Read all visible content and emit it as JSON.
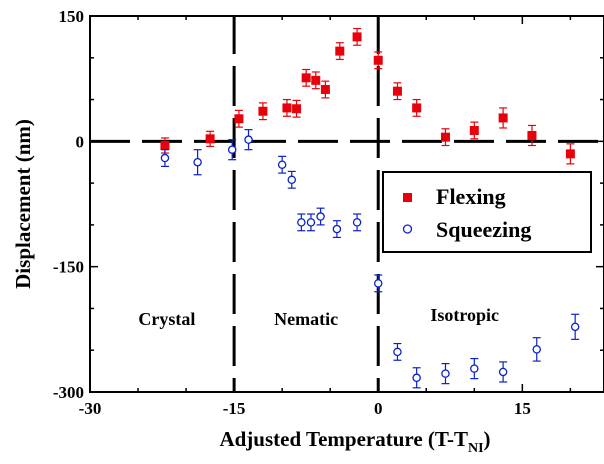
{
  "chart_data": {
    "type": "scatter",
    "xlabel": "Adjusted Temperature (T-T",
    "xlabel_sub": "NI",
    "xlabel_end": ")",
    "ylabel": "Displacement (nm)",
    "xlim": [
      -30,
      23.5
    ],
    "ylim": [
      -300,
      150
    ],
    "x_ticks": [
      -30,
      -15,
      0,
      15
    ],
    "y_ticks": [
      150,
      0,
      -150,
      -300
    ],
    "grid": false,
    "legend_position": "center-right",
    "series": [
      {
        "name": "Flexing",
        "marker": "filled-square",
        "color": "#e8000b",
        "points": [
          {
            "x": -22.2,
            "y": -5,
            "err": 9
          },
          {
            "x": -17.5,
            "y": 3,
            "err": 9
          },
          {
            "x": -14.5,
            "y": 27,
            "err": 10
          },
          {
            "x": -12,
            "y": 36,
            "err": 10
          },
          {
            "x": -9.5,
            "y": 40,
            "err": 10
          },
          {
            "x": -8.5,
            "y": 39,
            "err": 10
          },
          {
            "x": -7.5,
            "y": 76,
            "err": 10
          },
          {
            "x": -6.5,
            "y": 73,
            "err": 10
          },
          {
            "x": -5.5,
            "y": 62,
            "err": 10
          },
          {
            "x": -4,
            "y": 108,
            "err": 10
          },
          {
            "x": -2.2,
            "y": 125,
            "err": 10
          },
          {
            "x": 0,
            "y": 97,
            "err": 10
          },
          {
            "x": 2,
            "y": 60,
            "err": 10
          },
          {
            "x": 4,
            "y": 40,
            "err": 10
          },
          {
            "x": 7,
            "y": 5,
            "err": 10
          },
          {
            "x": 10,
            "y": 13,
            "err": 10
          },
          {
            "x": 13,
            "y": 28,
            "err": 12
          },
          {
            "x": 16,
            "y": 7,
            "err": 12
          },
          {
            "x": 20,
            "y": -15,
            "err": 12
          }
        ]
      },
      {
        "name": "Squeezing",
        "marker": "open-circle",
        "color": "#0a22c8",
        "points": [
          {
            "x": -22.2,
            "y": -20,
            "err": 10
          },
          {
            "x": -18.8,
            "y": -25,
            "err": 15
          },
          {
            "x": -15.2,
            "y": -10,
            "err": 12
          },
          {
            "x": -13.5,
            "y": 2,
            "err": 12
          },
          {
            "x": -10,
            "y": -28,
            "err": 10
          },
          {
            "x": -9,
            "y": -46,
            "err": 10
          },
          {
            "x": -8,
            "y": -97,
            "err": 10
          },
          {
            "x": -7,
            "y": -97,
            "err": 10
          },
          {
            "x": -6,
            "y": -90,
            "err": 10
          },
          {
            "x": -4.3,
            "y": -105,
            "err": 10
          },
          {
            "x": -2.2,
            "y": -97,
            "err": 10
          },
          {
            "x": 0,
            "y": -170,
            "err": 10
          },
          {
            "x": 2,
            "y": -252,
            "err": 10
          },
          {
            "x": 4,
            "y": -283,
            "err": 12
          },
          {
            "x": 7,
            "y": -278,
            "err": 12
          },
          {
            "x": 10,
            "y": -272,
            "err": 12
          },
          {
            "x": 13,
            "y": -276,
            "err": 12
          },
          {
            "x": 16.5,
            "y": -249,
            "err": 14
          },
          {
            "x": 20.5,
            "y": -222,
            "err": 15
          }
        ]
      }
    ],
    "reference_lines": [
      {
        "orientation": "horizontal",
        "value": 0,
        "style": "dashed"
      },
      {
        "orientation": "vertical",
        "value": -15,
        "style": "dashed"
      },
      {
        "orientation": "vertical",
        "value": 0,
        "style": "dashed"
      }
    ],
    "region_labels": [
      {
        "text": "Crystal",
        "x": -22,
        "y": -220
      },
      {
        "text": "Nematic",
        "x": -7.5,
        "y": -220
      },
      {
        "text": "Isotropic",
        "x": 9,
        "y": -215
      }
    ]
  }
}
